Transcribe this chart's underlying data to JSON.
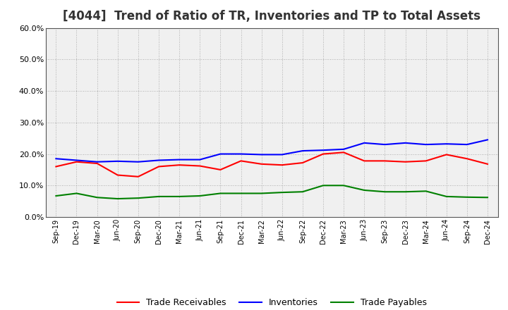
{
  "title": "[4044]  Trend of Ratio of TR, Inventories and TP to Total Assets",
  "x_labels": [
    "Sep-19",
    "Dec-19",
    "Mar-20",
    "Jun-20",
    "Sep-20",
    "Dec-20",
    "Mar-21",
    "Jun-21",
    "Sep-21",
    "Dec-21",
    "Mar-22",
    "Jun-22",
    "Sep-22",
    "Dec-22",
    "Mar-23",
    "Jun-23",
    "Sep-23",
    "Dec-23",
    "Mar-24",
    "Jun-24",
    "Sep-24",
    "Dec-24"
  ],
  "trade_receivables": [
    0.16,
    0.175,
    0.17,
    0.133,
    0.128,
    0.16,
    0.165,
    0.162,
    0.15,
    0.178,
    0.168,
    0.165,
    0.172,
    0.2,
    0.205,
    0.178,
    0.178,
    0.175,
    0.178,
    0.198,
    0.185,
    0.168
  ],
  "inventories": [
    0.185,
    0.18,
    0.175,
    0.177,
    0.175,
    0.18,
    0.182,
    0.182,
    0.2,
    0.2,
    0.198,
    0.198,
    0.21,
    0.212,
    0.215,
    0.235,
    0.23,
    0.235,
    0.23,
    0.232,
    0.23,
    0.245
  ],
  "trade_payables": [
    0.067,
    0.075,
    0.062,
    0.058,
    0.06,
    0.065,
    0.065,
    0.067,
    0.075,
    0.075,
    0.075,
    0.078,
    0.08,
    0.1,
    0.1,
    0.085,
    0.08,
    0.08,
    0.082,
    0.065,
    0.063,
    0.062
  ],
  "tr_color": "#ff0000",
  "inv_color": "#0000ff",
  "tp_color": "#008000",
  "ylim": [
    0.0,
    0.6
  ],
  "yticks": [
    0.0,
    0.1,
    0.2,
    0.3,
    0.4,
    0.5,
    0.6
  ],
  "background_color": "#ffffff",
  "plot_bg_color": "#f0f0f0",
  "grid_color": "#999999",
  "legend_labels": [
    "Trade Receivables",
    "Inventories",
    "Trade Payables"
  ],
  "title_fontsize": 12,
  "title_color": "#333333"
}
